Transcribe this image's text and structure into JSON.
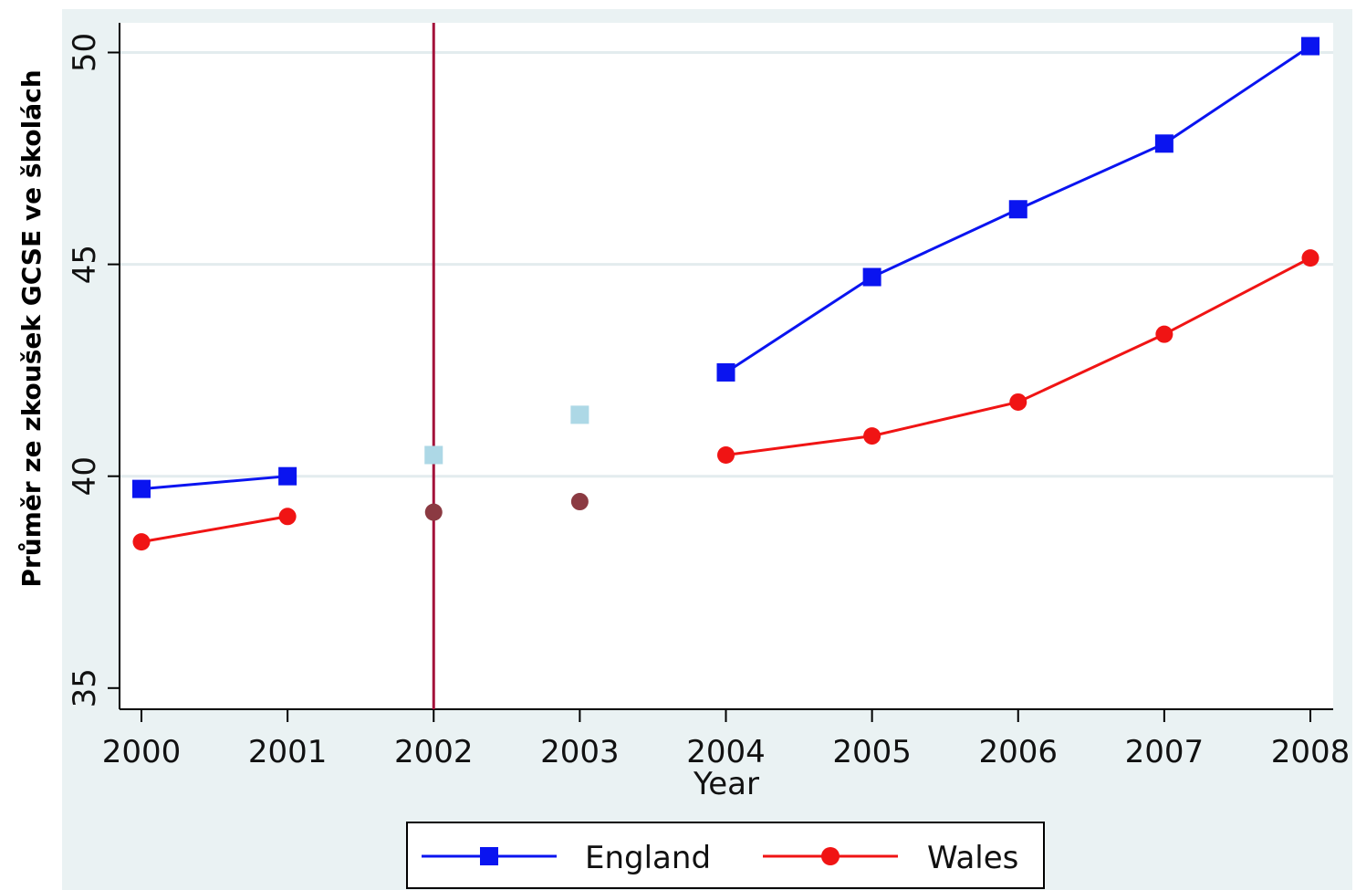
{
  "chart_data": {
    "type": "line",
    "title": "",
    "xlabel": "Year",
    "ylabel": "Průměr ze zkoušek GCSE ve školách",
    "x": [
      2000,
      2001,
      2002,
      2003,
      2004,
      2005,
      2006,
      2007,
      2008
    ],
    "xticks": [
      "2000",
      "2001",
      "2002",
      "2003",
      "2004",
      "2005",
      "2006",
      "2007",
      "2008"
    ],
    "yticks": [
      "35",
      "40",
      "45",
      "50"
    ],
    "ylim": [
      34.5,
      50.7
    ],
    "xlim": [
      2000,
      2008
    ],
    "grid": true,
    "legend_position": "bottom",
    "reference_line": {
      "x": 2002,
      "color": "#a3123a"
    },
    "series": [
      {
        "name": "England",
        "color": "#0a14f0",
        "marker": "square",
        "values": [
          39.7,
          40.0,
          40.5,
          41.45,
          42.45,
          44.7,
          46.3,
          47.85,
          50.15
        ],
        "connected": [
          true,
          true,
          false,
          false,
          true,
          true,
          true,
          true,
          true
        ],
        "highlight_color": "#add8e6",
        "highlight_points": [
          2002,
          2003
        ]
      },
      {
        "name": "Wales",
        "color": "#f01414",
        "marker": "circle",
        "values": [
          38.45,
          39.05,
          39.15,
          39.4,
          40.5,
          40.95,
          41.75,
          43.35,
          45.15
        ],
        "connected": [
          true,
          true,
          false,
          false,
          true,
          true,
          true,
          true,
          true
        ],
        "highlight_color": "#8b3a42",
        "highlight_points": [
          2002,
          2003
        ]
      }
    ]
  }
}
